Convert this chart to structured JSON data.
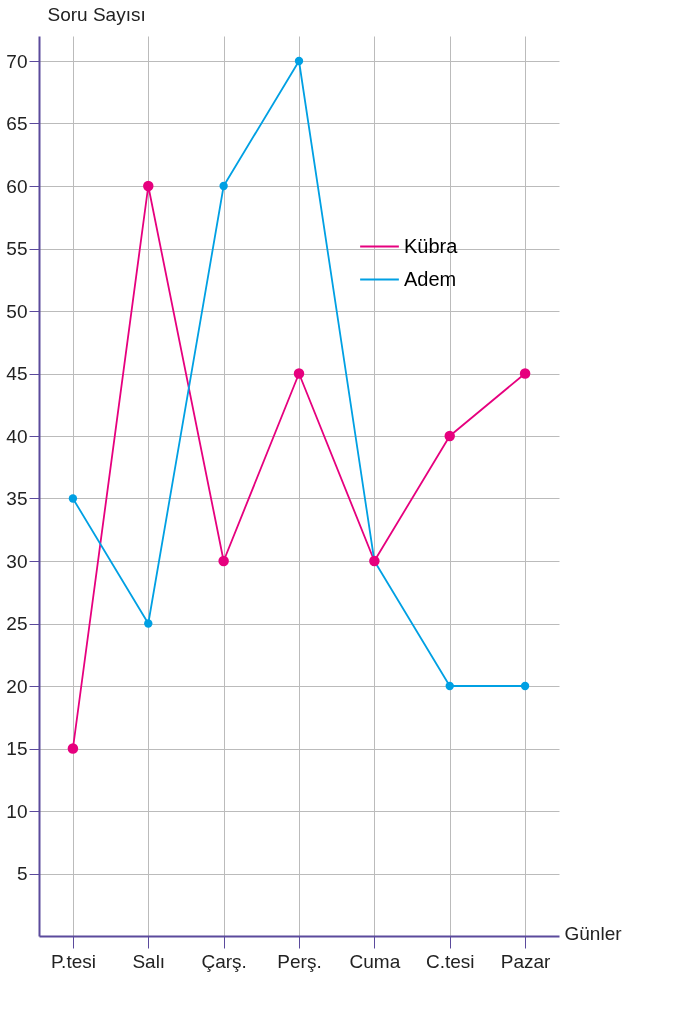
{
  "chart_data": {
    "type": "line",
    "xlabel": "Günler",
    "ylabel": "Soru Sayısı",
    "categories": [
      "P.tesi",
      "Salı",
      "Çarş.",
      "Perş.",
      "Cuma",
      "C.tesi",
      "Pazar"
    ],
    "series": [
      {
        "name": "Kübra",
        "color": "#e6007e",
        "values": [
          15,
          60,
          30,
          45,
          30,
          40,
          45
        ]
      },
      {
        "name": "Adem",
        "color": "#00a0e3",
        "values": [
          35,
          25,
          60,
          70,
          30,
          20,
          20
        ]
      }
    ],
    "ylim": [
      0,
      72
    ],
    "yticks": [
      5,
      10,
      15,
      20,
      25,
      30,
      35,
      40,
      45,
      50,
      55,
      60,
      65,
      70
    ],
    "grid": true,
    "legend": "top right",
    "marker": "circle",
    "line_style": "solid"
  }
}
